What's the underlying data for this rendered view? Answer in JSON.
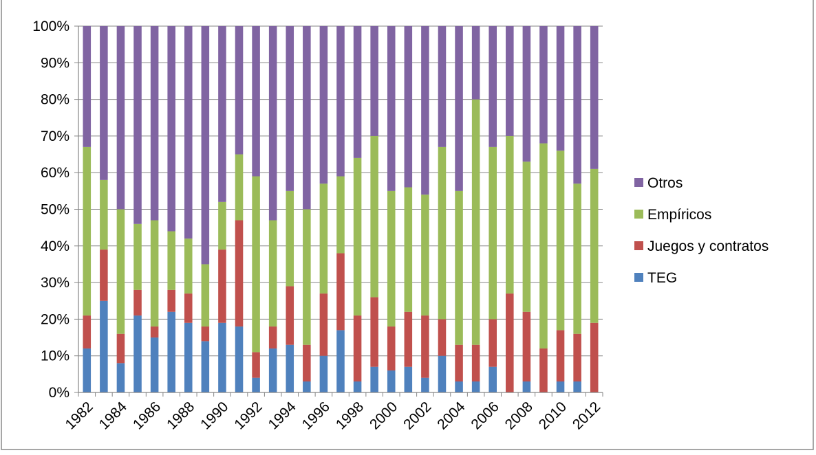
{
  "chart_data": {
    "type": "bar",
    "stacked": true,
    "percent": true,
    "title": "",
    "xlabel": "",
    "ylabel": "",
    "ylim": [
      0,
      100
    ],
    "yticks": [
      "0%",
      "10%",
      "20%",
      "30%",
      "40%",
      "50%",
      "60%",
      "70%",
      "80%",
      "90%",
      "100%"
    ],
    "xticks": [
      "1982",
      "1984",
      "1986",
      "1988",
      "1990",
      "1992",
      "1994",
      "1996",
      "1998",
      "2000",
      "2002",
      "2004",
      "2006",
      "2008",
      "2010",
      "2012"
    ],
    "categories": [
      "1982",
      "1983",
      "1984",
      "1985",
      "1986",
      "1987",
      "1988",
      "1989",
      "1990",
      "1991",
      "1992",
      "1993",
      "1994",
      "1995",
      "1996",
      "1997",
      "1998",
      "1999",
      "2000",
      "2001",
      "2002",
      "2003",
      "2004",
      "2005",
      "2006",
      "2007",
      "2008",
      "2009",
      "2010",
      "2011",
      "2012"
    ],
    "grid": "horizontal",
    "legend_position": "right",
    "series": [
      {
        "name": "TEG",
        "color": "#4f81bd",
        "values": [
          12,
          25,
          8,
          21,
          15,
          22,
          19,
          14,
          19,
          18,
          4,
          12,
          13,
          3,
          10,
          17,
          3,
          7,
          6,
          7,
          4,
          10,
          3,
          3,
          7,
          0,
          3,
          0,
          3,
          3,
          0
        ]
      },
      {
        "name": "Juegos y contratos",
        "color": "#c0504d",
        "values": [
          9,
          14,
          8,
          7,
          3,
          6,
          8,
          4,
          20,
          29,
          7,
          6,
          16,
          10,
          17,
          21,
          18,
          19,
          12,
          15,
          17,
          10,
          10,
          10,
          13,
          27,
          19,
          12,
          14,
          13,
          19
        ]
      },
      {
        "name": "Empíricos",
        "color": "#9bbb59",
        "values": [
          46,
          19,
          34,
          18,
          29,
          16,
          15,
          17,
          13,
          18,
          48,
          29,
          26,
          37,
          30,
          21,
          43,
          44,
          37,
          34,
          33,
          47,
          42,
          67,
          47,
          43,
          41,
          56,
          49,
          41,
          42
        ]
      },
      {
        "name": "Otros",
        "color": "#8064a2",
        "values": [
          33,
          42,
          50,
          54,
          53,
          56,
          58,
          65,
          48,
          35,
          41,
          53,
          45,
          50,
          43,
          41,
          36,
          30,
          45,
          44,
          46,
          33,
          45,
          20,
          33,
          30,
          37,
          32,
          34,
          43,
          39
        ]
      }
    ]
  },
  "legend": {
    "items": [
      {
        "label": "Otros",
        "color": "#8064a2"
      },
      {
        "label": "Empíricos",
        "color": "#9bbb59"
      },
      {
        "label": "Juegos y contratos",
        "color": "#c0504d"
      },
      {
        "label": "TEG",
        "color": "#4f81bd"
      }
    ]
  }
}
